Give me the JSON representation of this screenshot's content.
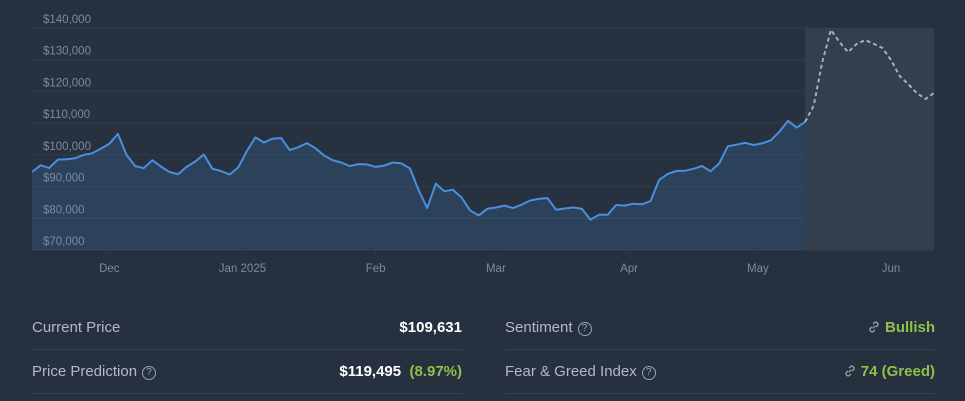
{
  "chart_data": {
    "type": "line",
    "xlim": [
      0,
      210
    ],
    "xticks": [
      {
        "value": 18,
        "label": "Dec"
      },
      {
        "value": 49,
        "label": "Jan 2025"
      },
      {
        "value": 80,
        "label": "Feb"
      },
      {
        "value": 108,
        "label": "Mar"
      },
      {
        "value": 139,
        "label": "Apr"
      },
      {
        "value": 169,
        "label": "May"
      },
      {
        "value": 200,
        "label": "Jun"
      }
    ],
    "ylim": [
      70000,
      140000
    ],
    "yticks": [
      {
        "value": 70000,
        "label": "$70,000"
      },
      {
        "value": 80000,
        "label": "$80,000"
      },
      {
        "value": 90000,
        "label": "$90,000"
      },
      {
        "value": 100000,
        "label": "$100,000"
      },
      {
        "value": 110000,
        "label": "$110,000"
      },
      {
        "value": 120000,
        "label": "$120,000"
      },
      {
        "value": 130000,
        "label": "$130,000"
      },
      {
        "value": 140000,
        "label": "$140,000"
      }
    ],
    "grid": true,
    "series": [
      {
        "color": "#4a8fe0",
        "fill": true,
        "dashed": false,
        "x": [
          0,
          2,
          4,
          6,
          8,
          10,
          12,
          14,
          16,
          18,
          20,
          22,
          24,
          26,
          28,
          30,
          32,
          34,
          36,
          38,
          40,
          42,
          44,
          46,
          48,
          50,
          52,
          54,
          56,
          58,
          60,
          62,
          64,
          66,
          68,
          70,
          72,
          74,
          76,
          78,
          80,
          82,
          84,
          86,
          88,
          90,
          92,
          94,
          96,
          98,
          100,
          102,
          104,
          106,
          108,
          110,
          112,
          114,
          116,
          118,
          120,
          122,
          124,
          126,
          128,
          130,
          132,
          134,
          136,
          138,
          140,
          142,
          144,
          146,
          148,
          150,
          152,
          154,
          156,
          158,
          160,
          162,
          164,
          166,
          168,
          170,
          172,
          174,
          176,
          178,
          180
        ],
        "values": [
          94600,
          96700,
          95900,
          98500,
          98600,
          98900,
          100000,
          100500,
          101900,
          103500,
          106600,
          100000,
          96500,
          95800,
          98300,
          96300,
          94600,
          93900,
          96200,
          97900,
          100100,
          95600,
          94900,
          93800,
          96000,
          101200,
          105500,
          103900,
          105100,
          105300,
          101500,
          102400,
          103700,
          102100,
          99800,
          98300,
          97600,
          96500,
          97100,
          97000,
          96200,
          96600,
          97600,
          97300,
          95700,
          88900,
          83200,
          90900,
          88500,
          89000,
          86600,
          82500,
          80900,
          83000,
          83400,
          84000,
          83200,
          84300,
          85600,
          86100,
          86400,
          82700,
          83100,
          83400,
          83000,
          79600,
          81100,
          81100,
          84200,
          84000,
          84600,
          84400,
          85400,
          92100,
          94000,
          94900,
          95000,
          95600,
          96500,
          94800,
          97300,
          102700,
          103200,
          103800,
          103100,
          103600,
          104600,
          107300,
          110700,
          108600,
          110400
        ]
      },
      {
        "color": "#a7aeb8",
        "fill": false,
        "dashed": true,
        "x": [
          180,
          182,
          184,
          186,
          188,
          190,
          192,
          194,
          196,
          198,
          200,
          202,
          204,
          206,
          208,
          210
        ],
        "values": [
          110400,
          115500,
          129300,
          139400,
          135600,
          132400,
          135000,
          136200,
          135000,
          133700,
          129900,
          124900,
          122300,
          119500,
          117600,
          119500
        ]
      }
    ]
  },
  "stats": {
    "current_price": {
      "label": "Current Price",
      "value": "$109,631"
    },
    "price_prediction": {
      "label": "Price Prediction",
      "value": "$119,495",
      "change": "(8.97%)"
    },
    "sentiment": {
      "label": "Sentiment",
      "value": "Bullish"
    },
    "fear_greed": {
      "label": "Fear & Greed Index",
      "value": "74 (Greed)"
    }
  }
}
